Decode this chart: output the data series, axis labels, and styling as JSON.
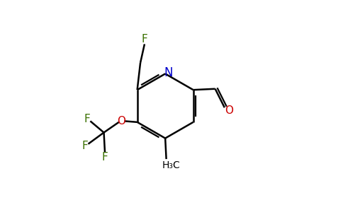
{
  "background_color": "#ffffff",
  "bond_color": "#000000",
  "atom_colors": {
    "F": "#3a7000",
    "N": "#0000cc",
    "O": "#cc0000",
    "C": "#000000",
    "H": "#000000"
  },
  "figsize": [
    4.84,
    3.0
  ],
  "dpi": 100
}
